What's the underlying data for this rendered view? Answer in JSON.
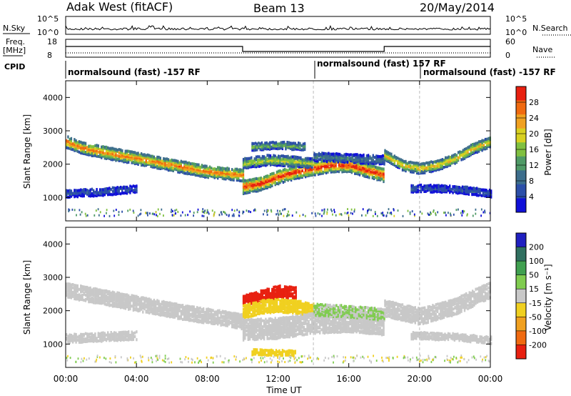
{
  "header": {
    "site": "Adak West (fitACF)",
    "beam": "Beam 13",
    "date": "20/May/2014"
  },
  "strip": {
    "nsky_label": "N.Sky",
    "nsky_ticks": [
      "10^5",
      "10^0"
    ],
    "nsearch_label": "N.Search",
    "nsearch_ticks": [
      "10^5",
      "10^0"
    ],
    "freq_label_1": "Freq.",
    "freq_label_2": "[MHz]",
    "freq_ticks": [
      "18",
      "8"
    ],
    "nave_label": "Nave",
    "nave_ticks": [
      "60",
      "0"
    ],
    "cpid_label": "CPID",
    "cpid_segments": [
      "normalsound (fast) -157 RF",
      "normalsound (fast) 157 RF",
      "normalsound (fast) -157 RF"
    ]
  },
  "colors": {
    "power": [
      "#1010d8",
      "#2c4fa8",
      "#3d6e8c",
      "#4f9a66",
      "#80c040",
      "#d8d020",
      "#f0a020",
      "#f06a10",
      "#e82010"
    ],
    "velocity": [
      "#2020c0",
      "#307060",
      "#40a050",
      "#80cc50",
      "#c8c8c8",
      "#f0d020",
      "#f0a020",
      "#f06a10",
      "#e82010"
    ],
    "ground": "#c8c8c8"
  },
  "chart_data": [
    {
      "type": "heatmap",
      "name": "power",
      "xlabel": "",
      "ylabel": "Slant Range [km]",
      "yticks": [
        "1000",
        "2000",
        "3000",
        "4000"
      ],
      "ylim": [
        300,
        4500
      ],
      "xlim": [
        0,
        24
      ],
      "colorbar_label": "Power [dB]",
      "colorbar_ticks": [
        "4",
        "8",
        "12",
        "16",
        "20",
        "24",
        "28"
      ],
      "colorbar_range": [
        0,
        30
      ],
      "bands": [
        {
          "x": [
            0,
            1,
            2.5,
            4,
            6,
            8,
            10
          ],
          "y": [
            2700,
            2500,
            2350,
            2200,
            2000,
            1800,
            1700
          ],
          "width": 170,
          "peak": 26
        },
        {
          "x": [
            10,
            11,
            12,
            13,
            14,
            15,
            16,
            17,
            18
          ],
          "y": [
            1350,
            1450,
            1650,
            1800,
            1900,
            2000,
            2000,
            1850,
            1700
          ],
          "width": 200,
          "peak": 30
        },
        {
          "x": [
            10,
            11.5,
            13,
            14
          ],
          "y": [
            2050,
            2150,
            2100,
            2050
          ],
          "width": 140,
          "peak": 18
        },
        {
          "x": [
            14,
            16,
            18
          ],
          "y": [
            2250,
            2200,
            2150
          ],
          "width": 120,
          "peak": 10
        },
        {
          "x": [
            18,
            19,
            20,
            21,
            22,
            23,
            24
          ],
          "y": [
            2300,
            2000,
            1900,
            2000,
            2200,
            2500,
            2700
          ],
          "width": 150,
          "peak": 22
        },
        {
          "x": [
            0,
            1,
            2,
            3,
            4
          ],
          "y": [
            1150,
            1180,
            1200,
            1250,
            1300
          ],
          "width": 110,
          "peak": 6
        },
        {
          "x": [
            19.5,
            21,
            22.5,
            24
          ],
          "y": [
            1300,
            1300,
            1250,
            1150
          ],
          "width": 100,
          "peak": 6
        },
        {
          "x": [
            10.5,
            12,
            13.5
          ],
          "y": [
            2550,
            2600,
            2550
          ],
          "width": 100,
          "peak": 15
        }
      ]
    },
    {
      "type": "heatmap",
      "name": "velocity",
      "xlabel": "Time UT",
      "ylabel": "Slant Range [km]",
      "yticks": [
        "1000",
        "2000",
        "3000",
        "4000"
      ],
      "ylim": [
        300,
        4500
      ],
      "xlim": [
        0,
        24
      ],
      "xticks": [
        "00:00",
        "04:00",
        "08:00",
        "12:00",
        "16:00",
        "20:00",
        "00:00"
      ],
      "colorbar_label": "Velocity [m s⁻¹]",
      "colorbar_ticks": [
        "200",
        "100",
        "50",
        "15",
        "-15",
        "-50",
        "-100",
        "-200"
      ],
      "colorbar_range": [
        -250,
        250
      ],
      "bands": [
        {
          "x": [
            0,
            2.5,
            5,
            7,
            9,
            10
          ],
          "y": [
            2650,
            2400,
            2150,
            1950,
            1800,
            1700
          ],
          "width": 220,
          "value": 0
        },
        {
          "x": [
            10,
            11,
            12,
            13
          ],
          "y": [
            2300,
            2450,
            2600,
            2550
          ],
          "width": 160,
          "value": -220
        },
        {
          "x": [
            10,
            11,
            12,
            13,
            14
          ],
          "y": [
            2000,
            2150,
            2200,
            2150,
            2050
          ],
          "width": 200,
          "value": -60
        },
        {
          "x": [
            10,
            12,
            14,
            16,
            18
          ],
          "y": [
            1450,
            1500,
            1650,
            1700,
            1600
          ],
          "width": 300,
          "value": 0
        },
        {
          "x": [
            14,
            16,
            18
          ],
          "y": [
            2050,
            2000,
            1900
          ],
          "width": 160,
          "value": 30
        },
        {
          "x": [
            18,
            20,
            22,
            24
          ],
          "y": [
            2100,
            1850,
            2150,
            2650
          ],
          "width": 230,
          "value": 0
        },
        {
          "x": [
            0,
            2,
            4
          ],
          "y": [
            1200,
            1250,
            1300
          ],
          "width": 130,
          "value": 0
        },
        {
          "x": [
            19.5,
            22,
            24
          ],
          "y": [
            1300,
            1250,
            1150
          ],
          "width": 110,
          "value": 0
        },
        {
          "x": [
            10.5,
            12,
            13
          ],
          "y": [
            780,
            760,
            740
          ],
          "width": 70,
          "value": -60
        }
      ]
    }
  ]
}
